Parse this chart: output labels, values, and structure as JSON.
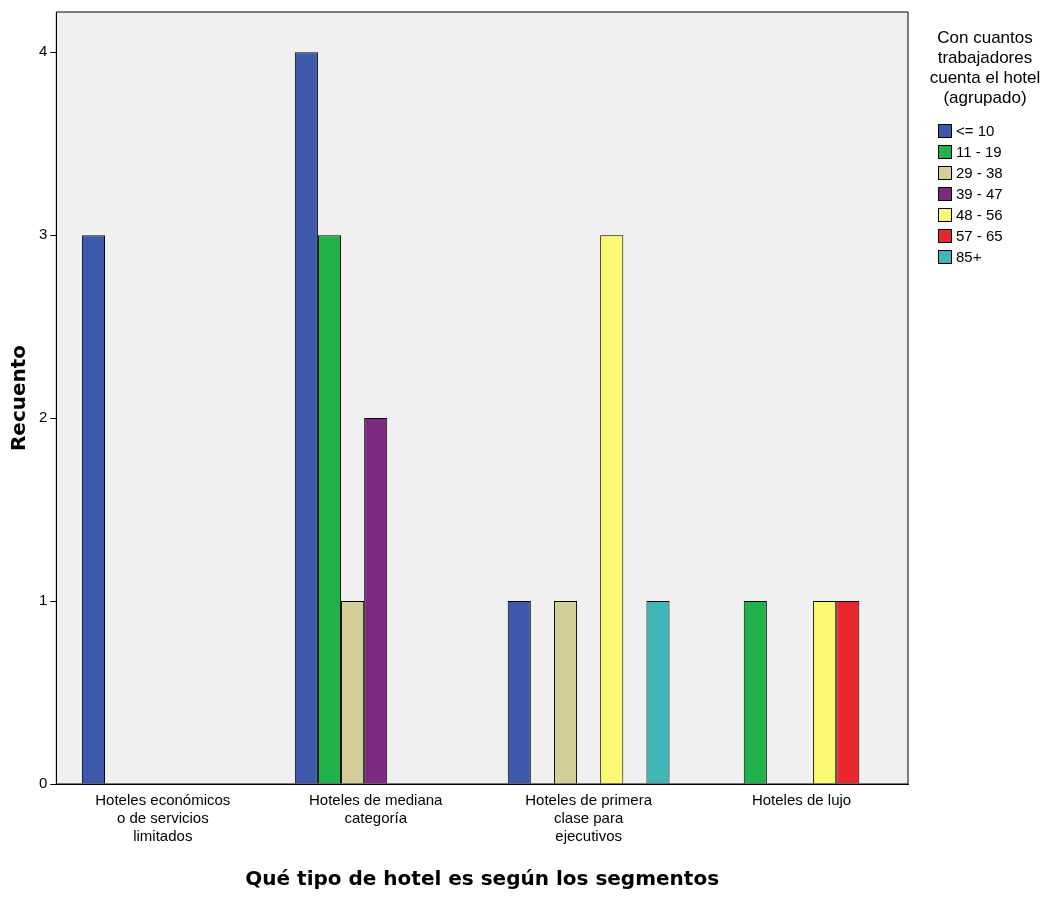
{
  "chart_data": {
    "type": "bar",
    "xlabel": "Qué tipo de hotel es según los segmentos",
    "ylabel": "Recuento",
    "legend_title": "Con cuantos trabajadores cuenta el hotel (agrupado)",
    "legend": "right",
    "grid": false,
    "categories": [
      "Hoteles económicos o de servicios limitados",
      "Hoteles de mediana categoría",
      "Hoteles de primera clase para ejecutivos",
      "Hoteles de lujo"
    ],
    "ylim": [
      0,
      4.22
    ],
    "yticks": [
      0,
      1,
      2,
      3,
      4
    ],
    "series": [
      {
        "name": "<= 10",
        "color": "#3e58ac",
        "values": [
          3,
          4,
          1,
          null
        ]
      },
      {
        "name": "11 - 19",
        "color": "#22b24c",
        "values": [
          null,
          3,
          null,
          1
        ]
      },
      {
        "name": "29 - 38",
        "color": "#d4cf98",
        "values": [
          null,
          1,
          1,
          null
        ]
      },
      {
        "name": "39 - 47",
        "color": "#7b2a7f",
        "values": [
          null,
          2,
          null,
          null
        ]
      },
      {
        "name": "48 - 56",
        "color": "#fbf874",
        "values": [
          null,
          null,
          3,
          1
        ]
      },
      {
        "name": "57 - 65",
        "color": "#e8262d",
        "values": [
          null,
          null,
          null,
          1
        ]
      },
      {
        "name": "85+",
        "color": "#40b6b9",
        "values": [
          null,
          null,
          1,
          null
        ]
      }
    ]
  }
}
